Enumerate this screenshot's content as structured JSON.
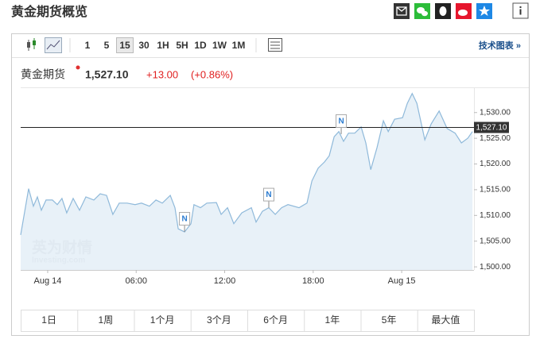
{
  "header": {
    "title": "黄金期货概览"
  },
  "toolbar": {
    "intervals": [
      "1",
      "5",
      "15",
      "30",
      "1H",
      "5H",
      "1D",
      "1W",
      "1M"
    ],
    "selected": 2,
    "tech_link": "技术图表 »"
  },
  "quote": {
    "name": "黄金期货",
    "price": "1,527.10",
    "change": "+13.00",
    "change_pct": "(+0.86%)"
  },
  "watermark": {
    "brand": "英为财情",
    "site": "Investing.com"
  },
  "ranges": [
    "1日",
    "1周",
    "1个月",
    "3个月",
    "6个月",
    "1年",
    "5年",
    "最大值"
  ],
  "chart_data": {
    "type": "area",
    "x": [
      -1.83,
      -1.29,
      -0.97,
      -0.7,
      -0.43,
      -0.11,
      0.32,
      0.65,
      0.97,
      1.29,
      1.73,
      2.16,
      2.59,
      3.13,
      3.56,
      3.99,
      4.42,
      4.85,
      5.39,
      5.93,
      6.36,
      6.9,
      7.34,
      7.77,
      8.31,
      8.63,
      8.85,
      9.28,
      9.71,
      9.92,
      10.36,
      10.79,
      11.44,
      11.76,
      12.19,
      12.62,
      13.16,
      13.81,
      14.13,
      14.56,
      14.99,
      15.43,
      15.86,
      16.29,
      17.04,
      17.58,
      17.91,
      18.34,
      18.77,
      19.09,
      19.42,
      19.74,
      20.06,
      20.39,
      20.82,
      21.25,
      21.57,
      21.9,
      22.33,
      22.76,
      23.09,
      23.52,
      24.06,
      24.38,
      24.71,
      25.03,
      25.57,
      26.0,
      26.54,
      27.08,
      27.62,
      28.05,
      28.48,
      28.8
    ],
    "series": [
      {
        "name": "黄金期货",
        "color": "#8fb9da",
        "fill": "#e4eef7",
        "values": [
          1506.2,
          1515.2,
          1511.8,
          1513.6,
          1511.0,
          1513.0,
          1513.0,
          1512.1,
          1513.3,
          1510.5,
          1513.3,
          1511.0,
          1513.6,
          1513.0,
          1514.2,
          1513.9,
          1510.2,
          1512.4,
          1512.4,
          1512.1,
          1512.4,
          1511.8,
          1513.0,
          1512.4,
          1513.9,
          1511.5,
          1507.4,
          1506.8,
          1508.4,
          1512.1,
          1511.5,
          1512.4,
          1512.5,
          1510.2,
          1511.5,
          1508.4,
          1510.5,
          1511.5,
          1508.7,
          1510.8,
          1511.5,
          1510.2,
          1511.5,
          1512.1,
          1511.5,
          1512.4,
          1516.7,
          1519.2,
          1520.4,
          1521.6,
          1525.3,
          1526.3,
          1524.4,
          1526.0,
          1526.0,
          1527.2,
          1524.1,
          1518.9,
          1523.2,
          1528.4,
          1526.3,
          1528.7,
          1529.0,
          1531.8,
          1533.7,
          1531.8,
          1524.7,
          1527.8,
          1530.3,
          1526.9,
          1526.0,
          1524.1,
          1525.0,
          1526.3
        ]
      }
    ],
    "xlim": [
      -1.83,
      28.9
    ],
    "xticks": [
      {
        "value": 0,
        "label": "Aug 14"
      },
      {
        "value": 6,
        "label": "06:00"
      },
      {
        "value": 12,
        "label": "12:00"
      },
      {
        "value": 18,
        "label": "18:00"
      },
      {
        "value": 24,
        "label": "Aug 15"
      }
    ],
    "ylim": [
      1499.4,
      1534.9
    ],
    "yticks": [
      {
        "value": 1500,
        "label": "1,500.00"
      },
      {
        "value": 1505,
        "label": "1,505.00"
      },
      {
        "value": 1510,
        "label": "1,510.00"
      },
      {
        "value": 1515,
        "label": "1,515.00"
      },
      {
        "value": 1520,
        "label": "1,520.00"
      },
      {
        "value": 1525,
        "label": "1,525.00"
      },
      {
        "value": 1530,
        "label": "1,530.00"
      }
    ],
    "price_line": {
      "value": 1527.1,
      "label": "1,527.10"
    },
    "annotations": [
      {
        "text": "N",
        "x": 9.28,
        "y": 1506.8
      },
      {
        "text": "N",
        "x": 14.99,
        "y": 1511.5
      },
      {
        "text": "N",
        "x": 19.9,
        "y": 1525.8
      }
    ]
  }
}
